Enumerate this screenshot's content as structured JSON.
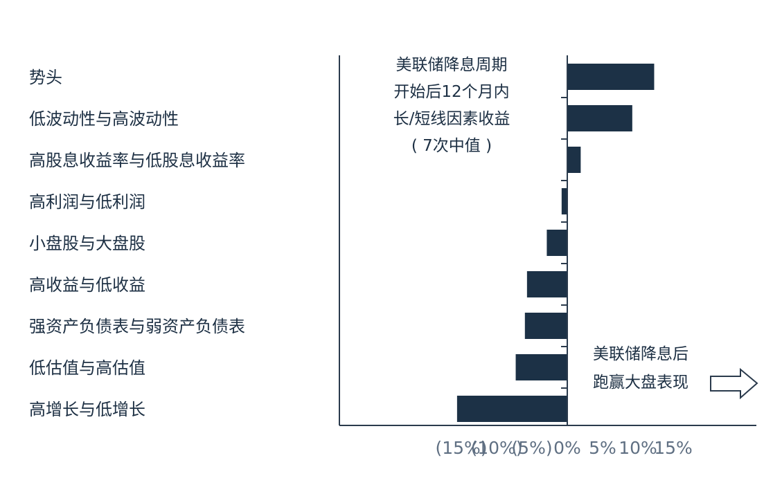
{
  "chart_data": {
    "type": "bar",
    "orientation": "horizontal",
    "categories": [
      "势头",
      "低波动性与高波动性",
      "高股息收益率与低股息收益率",
      "高利润与低利润",
      "小盘股与大盘股",
      "高收益与低收益",
      "强资产负债表与弱资产负债表",
      "低估值与高估值",
      "高增长与低增长"
    ],
    "values": [
      12.3,
      9.2,
      1.9,
      -0.8,
      -2.9,
      -5.7,
      -6.0,
      -7.3,
      -15.6
    ],
    "xlim": [
      -20,
      17
    ],
    "xticks": [
      -15,
      -10,
      -5,
      0,
      5,
      10,
      15
    ],
    "xtick_labels": [
      "(15%)",
      "(10%)",
      "(5%)",
      "0%",
      "5%",
      "10%",
      "15%"
    ],
    "grid": false,
    "legend": "none",
    "bar_color": "#1c3146",
    "annotations": {
      "top_note": [
        "美联储降息周期",
        "开始后12个月内",
        "长/短线因素收益",
        "( 7次中值 )"
      ],
      "right_note": [
        "美联储降息后",
        "跑赢大盘表现"
      ],
      "right_note_icon": "right-arrow-icon"
    }
  }
}
